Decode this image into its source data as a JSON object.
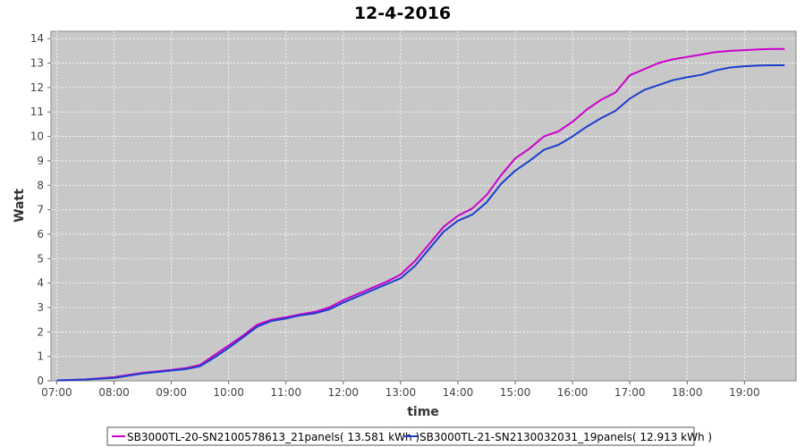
{
  "chart_data": {
    "type": "line",
    "title": "12-4-2016",
    "xlabel": "time",
    "ylabel": "Watt",
    "x_ticks": [
      "07:00",
      "08:00",
      "09:00",
      "10:00",
      "11:00",
      "12:00",
      "13:00",
      "14:00",
      "15:00",
      "16:00",
      "17:00",
      "18:00",
      "19:00"
    ],
    "xlim": [
      6.9,
      19.9
    ],
    "ylim": [
      0,
      14.3
    ],
    "y_ticks": [
      0,
      1,
      2,
      3,
      4,
      5,
      6,
      7,
      8,
      9,
      10,
      11,
      12,
      13,
      14
    ],
    "grid": true,
    "legend_position": "bottom",
    "background": "#c8c8c8",
    "series": [
      {
        "name": "SB3000TL-20-SN2100578613_21panels( 13.581 kWh )",
        "color": "#cc00cc",
        "x": [
          7.0,
          7.5,
          8.0,
          8.5,
          9.0,
          9.25,
          9.5,
          9.75,
          10.0,
          10.25,
          10.5,
          10.75,
          11.0,
          11.25,
          11.5,
          11.75,
          12.0,
          12.25,
          12.5,
          12.75,
          13.0,
          13.25,
          13.5,
          13.75,
          14.0,
          14.25,
          14.5,
          14.75,
          15.0,
          15.25,
          15.5,
          15.75,
          16.0,
          16.25,
          16.5,
          16.75,
          17.0,
          17.25,
          17.5,
          17.75,
          18.0,
          18.25,
          18.5,
          18.75,
          19.0,
          19.25,
          19.5,
          19.7
        ],
        "y": [
          0.02,
          0.06,
          0.15,
          0.33,
          0.45,
          0.52,
          0.65,
          1.05,
          1.45,
          1.85,
          2.3,
          2.5,
          2.6,
          2.72,
          2.82,
          3.0,
          3.3,
          3.55,
          3.8,
          4.05,
          4.35,
          4.9,
          5.6,
          6.3,
          6.75,
          7.05,
          7.6,
          8.4,
          9.1,
          9.5,
          10.0,
          10.2,
          10.6,
          11.1,
          11.5,
          11.8,
          12.5,
          12.75,
          13.0,
          13.15,
          13.25,
          13.35,
          13.45,
          13.5,
          13.53,
          13.56,
          13.58,
          13.58
        ]
      },
      {
        "name": "SB3000TL-21-SN2130032031_19panels( 12.913 kWh )",
        "color": "#1a3fcc",
        "x": [
          7.0,
          7.5,
          8.0,
          8.5,
          9.0,
          9.25,
          9.5,
          9.75,
          10.0,
          10.25,
          10.5,
          10.75,
          11.0,
          11.25,
          11.5,
          11.75,
          12.0,
          12.25,
          12.5,
          12.75,
          13.0,
          13.25,
          13.5,
          13.75,
          14.0,
          14.25,
          14.5,
          14.75,
          15.0,
          15.25,
          15.5,
          15.75,
          16.0,
          16.25,
          16.5,
          16.75,
          17.0,
          17.25,
          17.5,
          17.75,
          18.0,
          18.25,
          18.5,
          18.75,
          19.0,
          19.25,
          19.5,
          19.7
        ],
        "y": [
          0.02,
          0.05,
          0.12,
          0.3,
          0.42,
          0.48,
          0.6,
          0.95,
          1.35,
          1.78,
          2.22,
          2.45,
          2.55,
          2.68,
          2.76,
          2.92,
          3.2,
          3.45,
          3.7,
          3.95,
          4.2,
          4.7,
          5.4,
          6.1,
          6.55,
          6.8,
          7.3,
          8.05,
          8.6,
          9.0,
          9.45,
          9.65,
          10.0,
          10.4,
          10.75,
          11.05,
          11.55,
          11.9,
          12.1,
          12.3,
          12.42,
          12.52,
          12.7,
          12.82,
          12.87,
          12.9,
          12.91,
          12.91
        ]
      }
    ]
  }
}
